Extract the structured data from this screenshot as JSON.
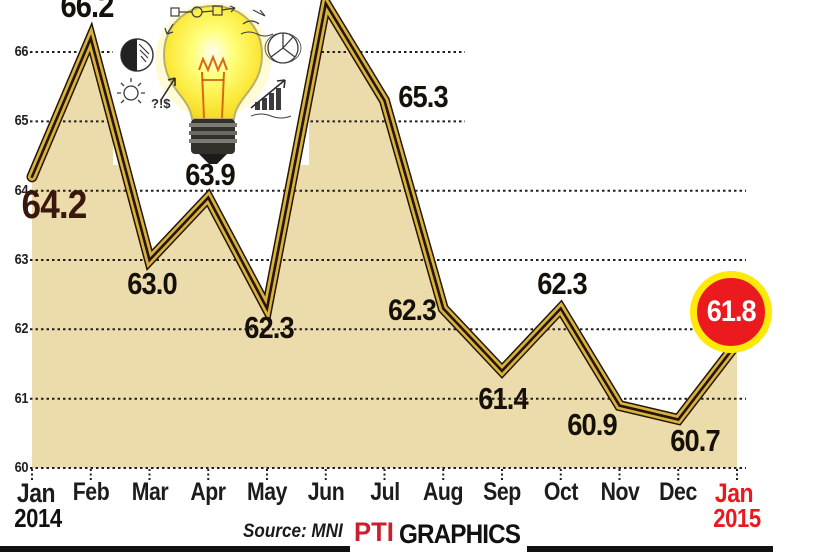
{
  "chart_data": {
    "type": "area",
    "title": "",
    "x": [
      "Jan 2014",
      "Feb",
      "Mar",
      "Apr",
      "May",
      "Jun",
      "Jul",
      "Aug",
      "Sep",
      "Oct",
      "Nov",
      "Dec",
      "Jan 2015"
    ],
    "values": [
      64.2,
      66.2,
      63.0,
      63.9,
      62.3,
      66.7,
      65.3,
      62.3,
      61.4,
      62.3,
      60.9,
      60.7,
      61.8
    ],
    "point_labels": [
      "64.2",
      "66.2",
      "63.0",
      "63.9",
      "62.3",
      "",
      "65.3",
      "62.3",
      "61.4",
      "62.3",
      "60.9",
      "60.7",
      "61.8"
    ],
    "note": "June peak and its data label are cropped off at the top edge of the image; June value estimated from line position",
    "ylim": [
      60,
      66.8
    ],
    "yticks": [
      66,
      65,
      64,
      63,
      62,
      61,
      60
    ],
    "grid": "horizontal dashed lines",
    "legend": "none",
    "highlight": {
      "month": "Jan 2015",
      "label": "61.8"
    },
    "colors": {
      "area_fill": "#ecdcab",
      "line_gold": "#d8b23e",
      "line_dark": "#241505",
      "grid": "#1f1f1f",
      "label_dark": "#151009",
      "first_label": "#3a170d",
      "highlight_red": "#e8191f",
      "badge_fill": "#ea1a1f",
      "badge_ring": "#ffe90a",
      "badge_text": "#ffffff"
    }
  },
  "xaxis": {
    "months": [
      "Jan",
      "Feb",
      "Mar",
      "Apr",
      "May",
      "Jun",
      "Jul",
      "Aug",
      "Sep",
      "Oct",
      "Nov",
      "Dec",
      "Jan"
    ],
    "start_year": "2014",
    "end_year": "2015"
  },
  "bulb": {
    "doodle_symbols": "?!$"
  },
  "footer": {
    "source_label": "Source:",
    "source_value": "MNI",
    "logo_text": "PTI",
    "logo_suffix": "GRAPHICS"
  }
}
